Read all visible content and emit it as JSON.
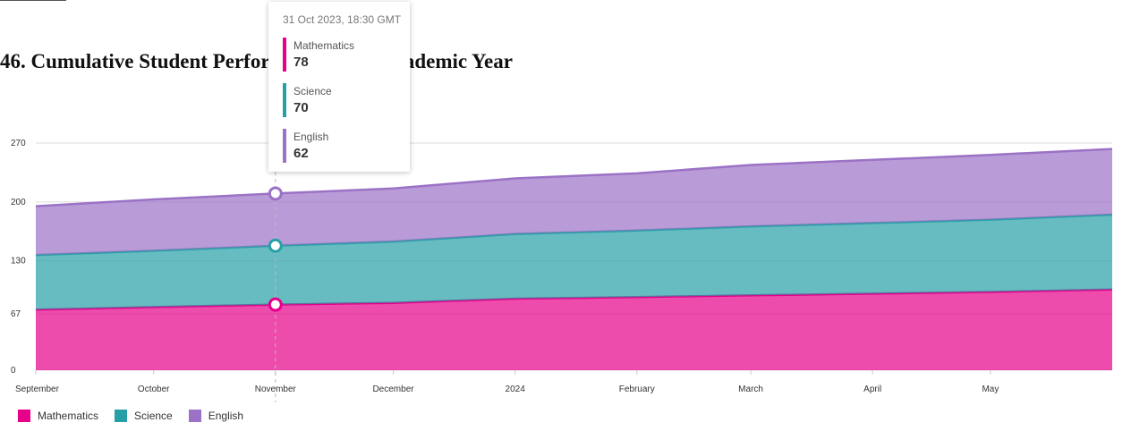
{
  "title": "46. Cumulative Student Performance Over Academic Year",
  "chart_data": {
    "type": "area",
    "stacked": true,
    "x": [
      "2023-09-01",
      "2023-10-01",
      "2023-11-01",
      "2023-12-01",
      "2024-01-01",
      "2024-02-01",
      "2024-03-01",
      "2024-04-01",
      "2024-05-01",
      "2024-06-01"
    ],
    "x_tick_labels": [
      "September",
      "October",
      "November",
      "December",
      "2024",
      "February",
      "March",
      "April",
      "May"
    ],
    "y_ticks": [
      0,
      67,
      130,
      200,
      270
    ],
    "ylim": [
      0,
      270
    ],
    "grid": true,
    "legend_position": "bottom-left",
    "series": [
      {
        "name": "Mathematics",
        "color": "#e6008a",
        "values": [
          72,
          75,
          78,
          80,
          85,
          87,
          89,
          91,
          93,
          96
        ]
      },
      {
        "name": "Science",
        "color": "#26a0a6",
        "values": [
          65,
          67,
          70,
          73,
          77,
          79,
          82,
          84,
          86,
          89
        ]
      },
      {
        "name": "English",
        "color": "#9b72c6",
        "values": [
          58,
          61,
          62,
          63,
          66,
          68,
          73,
          75,
          77,
          78
        ]
      }
    ]
  },
  "tooltip": {
    "date": "31 Oct 2023, 18:30 GMT",
    "entries": [
      {
        "name": "Mathematics",
        "value": "78",
        "color": "#e6008a"
      },
      {
        "name": "Science",
        "value": "70",
        "color": "#26a0a6"
      },
      {
        "name": "English",
        "value": "62",
        "color": "#9b72c6"
      }
    ]
  }
}
